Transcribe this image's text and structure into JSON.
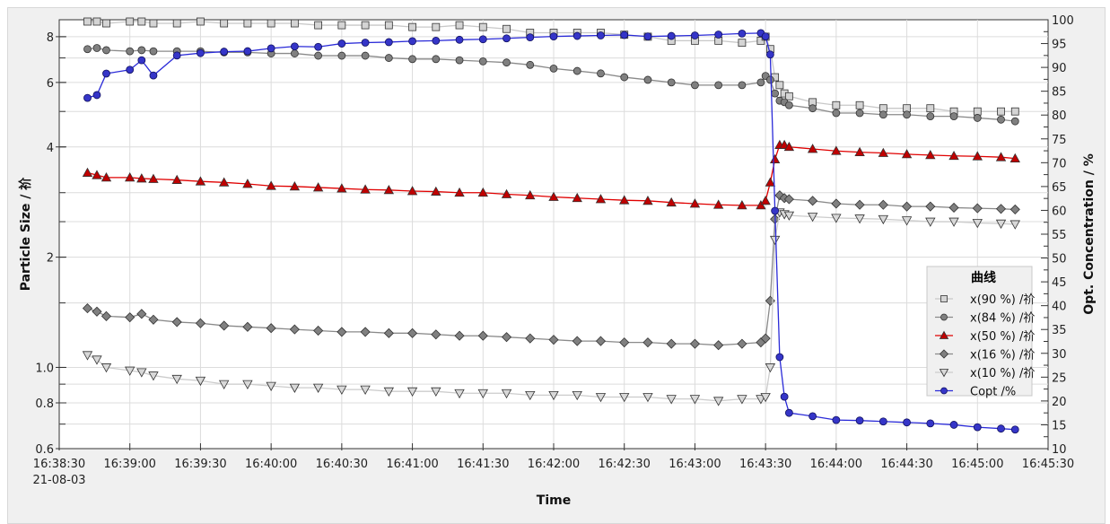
{
  "chart_data": {
    "type": "line",
    "xlabel": "Time",
    "ylabel": "Particle Size / 祄",
    "ylabel_right": "Opt. Concentration / %",
    "x_date_label": "21-08-03",
    "xlim": [
      "16:38:30",
      "16:45:30"
    ],
    "x_ticks": [
      "16:38:30",
      "16:39:00",
      "16:39:30",
      "16:40:00",
      "16:40:30",
      "16:41:00",
      "16:41:30",
      "16:42:00",
      "16:42:30",
      "16:43:00",
      "16:43:30",
      "16:44:00",
      "16:44:30",
      "16:45:00",
      "16:45:30"
    ],
    "ylim": [
      0.6,
      8.9
    ],
    "yscale": "log",
    "y_ticks": [
      "0.6",
      "0.8",
      "1.0",
      "2",
      "4",
      "6",
      "8"
    ],
    "ylim_right": [
      10,
      100
    ],
    "y_ticks_right": [
      "10",
      "15",
      "20",
      "25",
      "30",
      "35",
      "40",
      "45",
      "50",
      "55",
      "60",
      "65",
      "70",
      "75",
      "80",
      "85",
      "90",
      "95",
      "100"
    ],
    "grid": true,
    "legend": {
      "title": "曲线",
      "placement": "right"
    },
    "x": [
      "16:38:42",
      "16:38:46",
      "16:38:50",
      "16:39:00",
      "16:39:05",
      "16:39:10",
      "16:39:20",
      "16:39:30",
      "16:39:40",
      "16:39:50",
      "16:40:00",
      "16:40:10",
      "16:40:20",
      "16:40:30",
      "16:40:40",
      "16:40:50",
      "16:41:00",
      "16:41:10",
      "16:41:20",
      "16:41:30",
      "16:41:40",
      "16:41:50",
      "16:42:00",
      "16:42:10",
      "16:42:20",
      "16:42:30",
      "16:42:40",
      "16:42:50",
      "16:43:00",
      "16:43:10",
      "16:43:20",
      "16:43:28",
      "16:43:30",
      "16:43:32",
      "16:43:34",
      "16:43:36",
      "16:43:38",
      "16:43:40",
      "16:43:50",
      "16:44:00",
      "16:44:10",
      "16:44:20",
      "16:44:30",
      "16:44:40",
      "16:44:50",
      "16:45:00",
      "16:45:10",
      "16:45:16"
    ],
    "series": [
      {
        "name": "x(90 %) /祄",
        "axis": "left",
        "marker": "square",
        "color": "#d4d4d4",
        "line": "#c8c8c8",
        "values": [
          8.8,
          8.8,
          8.7,
          8.8,
          8.8,
          8.7,
          8.7,
          8.8,
          8.7,
          8.7,
          8.7,
          8.7,
          8.6,
          8.6,
          8.6,
          8.6,
          8.5,
          8.5,
          8.6,
          8.5,
          8.4,
          8.2,
          8.2,
          8.2,
          8.2,
          8.1,
          8.0,
          7.8,
          7.8,
          7.8,
          7.7,
          7.8,
          8.0,
          7.4,
          6.2,
          5.9,
          5.6,
          5.5,
          5.3,
          5.2,
          5.2,
          5.1,
          5.1,
          5.1,
          5.0,
          5.0,
          5.0,
          5.0
        ]
      },
      {
        "name": "x(84 %) /祄",
        "axis": "left",
        "marker": "circle",
        "color": "#808080",
        "line": "#8a8a8a",
        "values": [
          7.4,
          7.45,
          7.35,
          7.3,
          7.35,
          7.3,
          7.3,
          7.3,
          7.25,
          7.25,
          7.2,
          7.2,
          7.1,
          7.1,
          7.1,
          7.0,
          6.95,
          6.95,
          6.9,
          6.85,
          6.8,
          6.7,
          6.55,
          6.45,
          6.35,
          6.2,
          6.1,
          6.0,
          5.9,
          5.9,
          5.9,
          6.0,
          6.25,
          6.1,
          5.6,
          5.35,
          5.3,
          5.2,
          5.1,
          4.95,
          4.95,
          4.9,
          4.9,
          4.85,
          4.85,
          4.8,
          4.75,
          4.7
        ]
      },
      {
        "name": "x(50 %) /祄",
        "axis": "left",
        "marker": "triangle",
        "color": "#c00000",
        "line": "#e00000",
        "values": [
          3.4,
          3.35,
          3.3,
          3.3,
          3.28,
          3.27,
          3.25,
          3.22,
          3.2,
          3.17,
          3.13,
          3.12,
          3.1,
          3.08,
          3.06,
          3.05,
          3.03,
          3.02,
          3.0,
          3.0,
          2.97,
          2.95,
          2.92,
          2.9,
          2.88,
          2.86,
          2.85,
          2.82,
          2.8,
          2.78,
          2.77,
          2.77,
          2.85,
          3.2,
          3.7,
          4.05,
          4.05,
          4.0,
          3.95,
          3.9,
          3.87,
          3.85,
          3.82,
          3.8,
          3.78,
          3.77,
          3.75,
          3.72
        ]
      },
      {
        "name": "x(16 %) /祄",
        "axis": "left",
        "marker": "diamond",
        "color": "#808080",
        "line": "#8a8a8a",
        "values": [
          1.45,
          1.42,
          1.38,
          1.37,
          1.4,
          1.35,
          1.33,
          1.32,
          1.3,
          1.29,
          1.28,
          1.27,
          1.26,
          1.25,
          1.25,
          1.24,
          1.24,
          1.23,
          1.22,
          1.22,
          1.21,
          1.2,
          1.19,
          1.18,
          1.18,
          1.17,
          1.17,
          1.16,
          1.16,
          1.15,
          1.16,
          1.17,
          1.2,
          1.52,
          2.54,
          2.95,
          2.9,
          2.88,
          2.85,
          2.8,
          2.78,
          2.78,
          2.75,
          2.75,
          2.73,
          2.72,
          2.71,
          2.7
        ]
      },
      {
        "name": "x(10 %) /祄",
        "axis": "left",
        "marker": "triangle-down",
        "color": "#d8d8d8",
        "line": "#cccccc",
        "values": [
          1.08,
          1.05,
          1.0,
          0.98,
          0.97,
          0.95,
          0.93,
          0.92,
          0.9,
          0.9,
          0.89,
          0.88,
          0.88,
          0.87,
          0.87,
          0.86,
          0.86,
          0.86,
          0.85,
          0.85,
          0.85,
          0.84,
          0.84,
          0.84,
          0.83,
          0.83,
          0.83,
          0.82,
          0.82,
          0.81,
          0.82,
          0.82,
          0.83,
          1.0,
          2.23,
          2.65,
          2.62,
          2.6,
          2.58,
          2.56,
          2.55,
          2.54,
          2.52,
          2.5,
          2.5,
          2.48,
          2.47,
          2.46
        ]
      },
      {
        "name": "Copt /%",
        "axis": "right",
        "marker": "circle",
        "color": "#3535c8",
        "line": "#2a2ad8",
        "values": [
          83.6,
          84.2,
          88.7,
          89.5,
          91.5,
          88.3,
          92.5,
          93.0,
          93.3,
          93.4,
          94.0,
          94.4,
          94.3,
          95.0,
          95.2,
          95.3,
          95.5,
          95.6,
          95.8,
          95.9,
          96.1,
          96.3,
          96.5,
          96.6,
          96.7,
          96.8,
          96.5,
          96.6,
          96.7,
          96.9,
          97.1,
          97.2,
          96.5,
          92.7,
          59.9,
          29.2,
          20.9,
          17.5,
          16.8,
          16.0,
          15.9,
          15.7,
          15.5,
          15.3,
          15.0,
          14.5,
          14.2,
          14.0
        ]
      }
    ]
  }
}
